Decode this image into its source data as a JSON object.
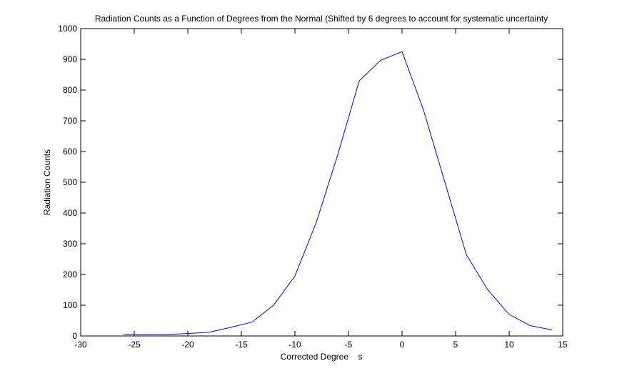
{
  "chart_data": {
    "type": "line",
    "title": "Radiation Counts as a Function of Degrees from the Normal (Shifted by 6 degrees to account for systematic uncertainty",
    "xlabel": "Corrected Degree    s",
    "ylabel": "Radiation Counts",
    "xlim": [
      -30,
      15
    ],
    "ylim": [
      0,
      1000
    ],
    "xticks": [
      -30,
      -25,
      -20,
      -15,
      -10,
      -5,
      0,
      5,
      10,
      15
    ],
    "yticks": [
      0,
      100,
      200,
      300,
      400,
      500,
      600,
      700,
      800,
      900,
      1000
    ],
    "grid": false,
    "line_color": "#0000ff",
    "series": [
      {
        "x": [
          -26,
          -24,
          -22,
          -20,
          -18,
          -16,
          -14,
          -12,
          -10,
          -8,
          -6,
          -4,
          -2,
          0,
          2,
          4,
          6,
          8,
          10,
          12,
          14
        ],
        "y": [
          5,
          5,
          5,
          8,
          12,
          28,
          45,
          100,
          195,
          370,
          590,
          830,
          897,
          925,
          735,
          500,
          265,
          150,
          70,
          33,
          20
        ]
      }
    ]
  }
}
